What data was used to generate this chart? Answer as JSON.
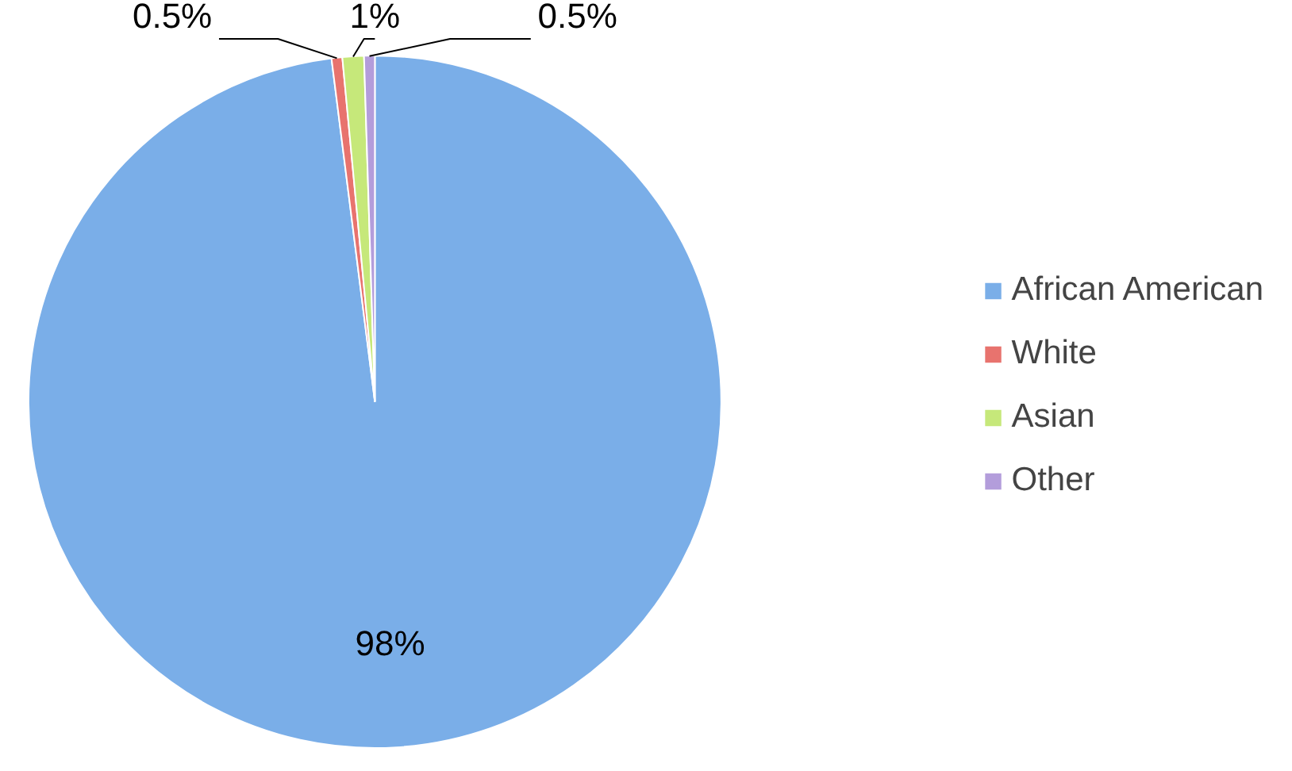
{
  "chart_data": {
    "type": "pie",
    "categories": [
      "African American",
      "White",
      "Asian",
      "Other"
    ],
    "values": [
      98,
      0.5,
      1,
      0.5
    ],
    "colors": [
      "#7aaee8",
      "#e8736e",
      "#c6e87a",
      "#b39ddb"
    ],
    "value_labels": [
      "98%",
      "0.5%",
      "1%",
      "0.5%"
    ],
    "legend": "right"
  }
}
